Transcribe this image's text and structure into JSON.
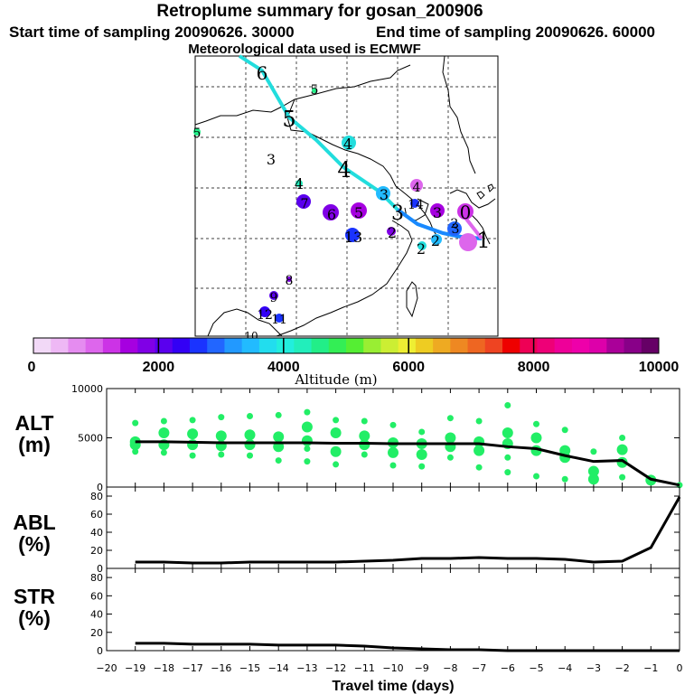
{
  "title": "Retroplume summary for gosan_200906",
  "start_label": "Start time of sampling 20090626. 30000",
  "end_label": "End time of sampling 20090626. 60000",
  "met_label": "Meteorological data used is ECMWF",
  "colorbar": {
    "ticks": [
      "0",
      "2000",
      "4000",
      "6000",
      "8000",
      "10000"
    ],
    "title": "Altitude (m)",
    "colors": [
      "#f2d9f7",
      "#eeb8f5",
      "#e58cf0",
      "#dd66ec",
      "#cc33e6",
      "#a600e0",
      "#8000e6",
      "#5a00ee",
      "#3300f5",
      "#1a33ff",
      "#2266ff",
      "#2299ff",
      "#22bbff",
      "#22ddee",
      "#22eedd",
      "#22eebb",
      "#22ee88",
      "#33ee55",
      "#55ee33",
      "#99ee33",
      "#ccee33",
      "#eeee33",
      "#eecc22",
      "#eeaa22",
      "#ee8822",
      "#ee6622",
      "#ee4422",
      "#ee0000",
      "#ee0055",
      "#ee0077",
      "#ee0099",
      "#ee00aa",
      "#dd00aa",
      "#aa0099",
      "#880088",
      "#660066"
    ]
  },
  "map_labels": [
    {
      "t": "6",
      "c": "#000000",
      "s": 20
    },
    {
      "t": "5",
      "c": "#000000",
      "s": 14
    },
    {
      "t": "5",
      "c": "#000000",
      "s": 24
    },
    {
      "t": "5",
      "c": "#000000",
      "s": 14
    },
    {
      "t": "3",
      "c": "#000000",
      "s": 16
    },
    {
      "t": "4",
      "c": "#000000",
      "s": 16
    },
    {
      "t": "4",
      "c": "#000000",
      "s": 24
    },
    {
      "t": "4",
      "c": "#000000",
      "s": 16
    },
    {
      "t": "4",
      "c": "#000000",
      "s": 14
    },
    {
      "t": "3",
      "c": "#000000",
      "s": 16
    },
    {
      "t": "14",
      "c": "#000000",
      "s": 14
    },
    {
      "t": "3",
      "c": "#000000",
      "s": 22
    },
    {
      "t": "3",
      "c": "#000000",
      "s": 16
    },
    {
      "t": "0",
      "c": "#000000",
      "s": 20
    },
    {
      "t": "7",
      "c": "#000000",
      "s": 14
    },
    {
      "t": "6",
      "c": "#000000",
      "s": 16
    },
    {
      "t": "5",
      "c": "#000000",
      "s": 16
    },
    {
      "t": "2",
      "c": "#000000",
      "s": 16
    },
    {
      "t": "2",
      "c": "#000000",
      "s": 16
    },
    {
      "t": "1",
      "c": "#000000",
      "s": 24
    },
    {
      "t": "2",
      "c": "#000000",
      "s": 16
    },
    {
      "t": "3",
      "c": "#000000",
      "s": 14
    },
    {
      "t": "13",
      "c": "#000000",
      "s": 16
    },
    {
      "t": "2",
      "c": "#000000",
      "s": 14
    },
    {
      "t": "8",
      "c": "#000000",
      "s": 14
    },
    {
      "t": "9",
      "c": "#000000",
      "s": 14
    },
    {
      "t": "12",
      "c": "#000000",
      "s": 14
    },
    {
      "t": "11",
      "c": "#000000",
      "s": 14
    },
    {
      "t": "10",
      "c": "#000000",
      "s": 12
    }
  ],
  "panels": [
    {
      "label1": "ALT",
      "label2": "(m)",
      "yticks": [
        "10000",
        "5000",
        "0"
      ]
    },
    {
      "label1": "ABL",
      "label2": "(%)",
      "yticks": [
        "80",
        "60",
        "40",
        "20",
        "0"
      ]
    },
    {
      "label1": "STR",
      "label2": "(%)",
      "yticks": [
        "80",
        "60",
        "40",
        "20",
        "0"
      ]
    }
  ],
  "xticks": [
    "−20",
    "−19",
    "−18",
    "−17",
    "−16",
    "−15",
    "−14",
    "−13",
    "−12",
    "−11",
    "−10",
    "−9",
    "−8",
    "−7",
    "−6",
    "−5",
    "−4",
    "−3",
    "−2",
    "−1",
    "0"
  ],
  "xlabel": "Travel time (days)",
  "chart_data": [
    {
      "type": "line",
      "title": "ALT (m)",
      "x": [
        -19,
        -18,
        -17,
        -16,
        -15,
        -14,
        -13,
        -12,
        -11,
        -10,
        -9,
        -8,
        -7,
        -6,
        -5,
        -4,
        -3,
        -2,
        -1,
        0
      ],
      "values": [
        4600,
        4600,
        4550,
        4500,
        4500,
        4500,
        4500,
        4450,
        4450,
        4400,
        4400,
        4400,
        4400,
        4100,
        3900,
        3200,
        2600,
        2700,
        800,
        200
      ],
      "ylim": [
        0,
        10000
      ],
      "scatter_clusters": [
        {
          "x": -19,
          "ys": [
            6500,
            4600,
            4300,
            3600
          ]
        },
        {
          "x": -18,
          "ys": [
            6700,
            5500,
            4300,
            3500
          ]
        },
        {
          "x": -17,
          "ys": [
            6800,
            5400,
            4300,
            3200
          ]
        },
        {
          "x": -16,
          "ys": [
            7100,
            5200,
            4200,
            3300
          ]
        },
        {
          "x": -15,
          "ys": [
            7200,
            5300,
            4300,
            3200
          ]
        },
        {
          "x": -14,
          "ys": [
            7300,
            5100,
            4100,
            2700
          ]
        },
        {
          "x": -13,
          "ys": [
            7600,
            6100,
            4700,
            3900,
            2600
          ]
        },
        {
          "x": -12,
          "ys": [
            6800,
            5500,
            3600,
            2300
          ]
        },
        {
          "x": -11,
          "ys": [
            6700,
            5200,
            4300,
            3300
          ]
        },
        {
          "x": -10,
          "ys": [
            6300,
            4500,
            3500,
            2200
          ]
        },
        {
          "x": -9,
          "ys": [
            5600,
            4400,
            3300,
            2100
          ]
        },
        {
          "x": -8,
          "ys": [
            7000,
            5000,
            4100,
            3000
          ]
        },
        {
          "x": -7,
          "ys": [
            6700,
            4600,
            3700,
            2000
          ]
        },
        {
          "x": -6,
          "ys": [
            8300,
            5500,
            4400,
            3000,
            1500
          ]
        },
        {
          "x": -5,
          "ys": [
            6400,
            5000,
            3700,
            1100
          ]
        },
        {
          "x": -4,
          "ys": [
            5800,
            3700,
            3000,
            800
          ]
        },
        {
          "x": -3,
          "ys": [
            3600,
            1600,
            800
          ]
        },
        {
          "x": -2,
          "ys": [
            5000,
            3800,
            2500,
            1000
          ]
        },
        {
          "x": -1,
          "ys": [
            900,
            700
          ]
        },
        {
          "x": 0,
          "ys": [
            200
          ]
        }
      ]
    },
    {
      "type": "line",
      "title": "ABL (%)",
      "x": [
        -19,
        -18,
        -17,
        -16,
        -15,
        -14,
        -13,
        -12,
        -11,
        -10,
        -9,
        -8,
        -7,
        -6,
        -5,
        -4,
        -3,
        -2,
        -1,
        0
      ],
      "values": [
        7,
        7,
        6,
        6,
        7,
        7,
        7,
        7,
        8,
        9,
        11,
        11,
        12,
        11,
        11,
        10,
        7,
        8,
        23,
        79
      ],
      "ylim": [
        0,
        90
      ]
    },
    {
      "type": "line",
      "title": "STR (%)",
      "x": [
        -19,
        -18,
        -17,
        -16,
        -15,
        -14,
        -13,
        -12,
        -11,
        -10,
        -9,
        -8,
        -7,
        -6,
        -5,
        -4,
        -3,
        -2,
        -1,
        0
      ],
      "values": [
        8,
        8,
        7,
        7,
        7,
        6,
        6,
        6,
        5,
        3,
        2,
        1,
        1,
        0,
        0,
        0,
        0,
        0,
        0,
        0
      ],
      "ylim": [
        0,
        90
      ]
    }
  ]
}
